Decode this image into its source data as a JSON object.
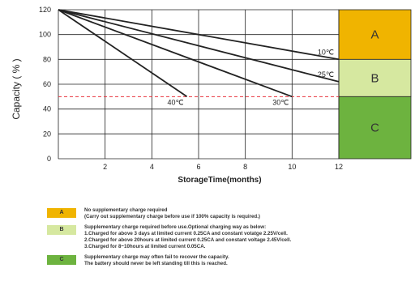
{
  "chart_data": {
    "type": "line",
    "title": "",
    "xlabel": "StorageTime(months)",
    "ylabel": "Capacity ( % )",
    "xlim": [
      0,
      12
    ],
    "ylim": [
      0,
      120
    ],
    "x_ticks": [
      "2",
      "4",
      "6",
      "8",
      "10",
      "12"
    ],
    "y_ticks": [
      "0",
      "20",
      "40",
      "60",
      "80",
      "100",
      "120"
    ],
    "grid": true,
    "threshold_line": {
      "y": 50,
      "style": "dashed",
      "color": "#e8323c"
    },
    "series": [
      {
        "name": "10℃",
        "points": [
          [
            0,
            120
          ],
          [
            12,
            80
          ]
        ]
      },
      {
        "name": "25℃",
        "points": [
          [
            0,
            120
          ],
          [
            12,
            62
          ]
        ]
      },
      {
        "name": "30℃",
        "points": [
          [
            0,
            120
          ],
          [
            10,
            50
          ]
        ]
      },
      {
        "name": "40℃",
        "points": [
          [
            0,
            120
          ],
          [
            5.5,
            50
          ]
        ]
      }
    ],
    "zones": [
      {
        "label": "A",
        "from": 80,
        "to": 120,
        "color": "#f0b400"
      },
      {
        "label": "B",
        "from": 50,
        "to": 80,
        "color": "#d6e8a0"
      },
      {
        "label": "C",
        "from": 0,
        "to": 50,
        "color": "#6db33f"
      }
    ]
  },
  "legend": [
    {
      "key": "A",
      "color": "#f0b400",
      "lines": [
        "No supplementary charge required",
        "(Carry out supplementary charge before use if 100% capacity is required.)"
      ]
    },
    {
      "key": "B",
      "color": "#d6e8a0",
      "lines": [
        "Supplementary charge required before use.Optional charging way as below:",
        "1.Charged for above 3 days at limited current 0.25CA and constant votatge 2.25V/cell.",
        "2.Charged for above 20hours at limited current 0.25CA and constant voltage 2.45V/cell.",
        "3.Charged for 8~10hours at limited current 0.05CA."
      ]
    },
    {
      "key": "C",
      "color": "#6db33f",
      "lines": [
        "Supplementary charge may often fail to recover the capacity.",
        "The battery should never be  left standing till this is reached."
      ]
    }
  ]
}
